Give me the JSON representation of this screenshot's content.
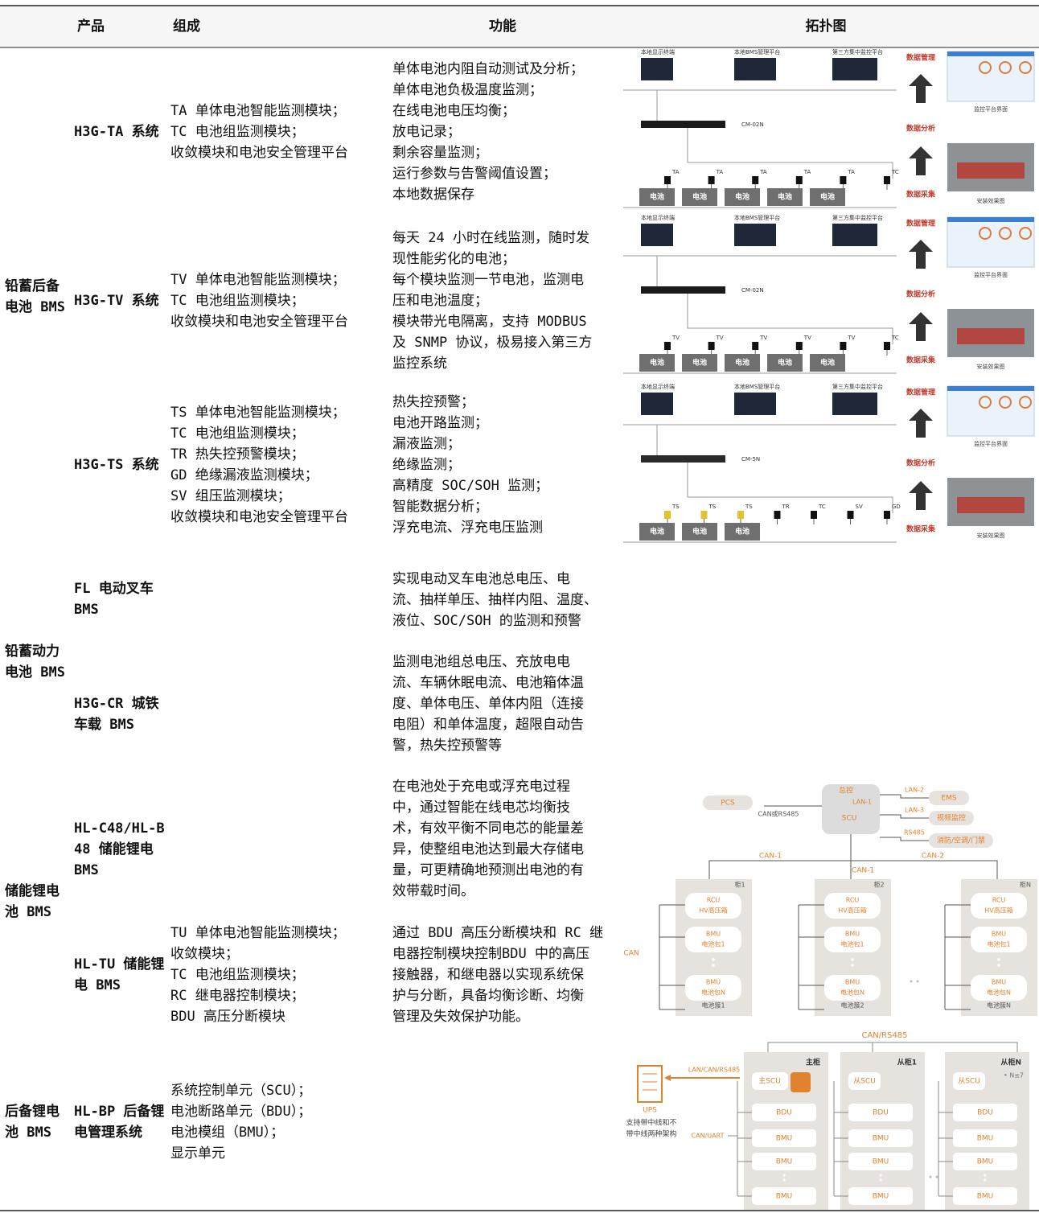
{
  "header": {
    "columns": [
      "产品",
      "组成",
      "功能",
      "拓扑图"
    ]
  },
  "groups": [
    {
      "category": [
        "铅蓄后备",
        "电池 BMS"
      ],
      "items": [
        {
          "product": [
            "H3G-TA 系统"
          ],
          "composition": [
            "TA 单体电池智能监测模块；",
            "TC 电池组监测模块；",
            "收敛模块和电池安全管理平台"
          ],
          "function": [
            "单体电池内阻自动测试及分析；",
            "单体电池负极温度监测；",
            "在线电池电压均衡；",
            "放电记录；",
            "剩余容量监测；",
            "运行参数与告警阈值设置；",
            "本地数据保存"
          ]
        },
        {
          "product": [
            "H3G-TV 系统"
          ],
          "composition": [
            "TV 单体电池智能监测模块；",
            "TC 电池组监测模块；",
            "收敛模块和电池安全管理平台"
          ],
          "function": [
            "每天 24 小时在线监测，随时发",
            "现性能劣化的电池；",
            "每个模块监测一节电池，监测电",
            "压和电池温度；",
            "模块带光电隔离，支持 MODBUS",
            "及 SNMP 协议，极易接入第三方",
            "监控系统"
          ]
        },
        {
          "product": [
            "H3G-TS 系统"
          ],
          "composition": [
            "TS 单体电池智能监测模块；",
            "TC 电池组监测模块；",
            "TR 热失控预警模块；",
            "GD 绝缘漏液监测模块；",
            "SV 组压监测模块；",
            "收敛模块和电池安全管理平台"
          ],
          "function": [
            "热失控预警；",
            "电池开路监测；",
            "漏液监测；",
            "绝缘监测；",
            "高精度 SOC/SOH 监测；",
            "智能数据分析；",
            "浮充电流、浮充电压监测"
          ]
        }
      ]
    },
    {
      "category": [
        "铅蓄动力",
        "电池 BMS"
      ],
      "items": [
        {
          "product": [
            "FL 电动叉车",
            "BMS"
          ],
          "composition": [],
          "function": [
            "实现电动叉车电池总电压、电",
            "流、抽样单压、抽样内阻、温度、",
            "液位、SOC/SOH 的监测和预警"
          ]
        },
        {
          "product": [
            "H3G-CR 城铁",
            "车载 BMS"
          ],
          "composition": [],
          "function": [
            "监测电池组总电压、充放电电",
            "流、车辆休眠电流、电池箱体温",
            "度、单体电压、单体内阻（连接",
            "电阻）和单体温度，超限自动告",
            "警，热失控预警等"
          ]
        }
      ]
    },
    {
      "category": [
        "储能锂电",
        "池 BMS"
      ],
      "items": [
        {
          "product": [
            "HL-C48/HL-B",
            "48 储能锂电",
            "BMS"
          ],
          "composition": [],
          "function": [
            "在电池处于充电或浮充电过程",
            "中，通过智能在线电芯均衡技",
            "术，有效平衡不同电芯的能量差",
            "异，使整组电池达到最大存储电",
            "量，可更精确地预测出电池的有",
            "效带载时间。"
          ]
        },
        {
          "product": [
            "HL-TU 储能锂",
            "电 BMS"
          ],
          "composition": [
            "TU 单体电池智能监测模块；",
            "收敛模块；",
            "TC 电池组监测模块；",
            "RC 继电器控制模块；",
            "BDU 高压分断模块"
          ],
          "function": [
            "通过 BDU 高压分断模块和 RC 继",
            "电器控制模块控制BDU 中的高压",
            "接触器，和继电器以实现系统保",
            "护与分断，具备均衡诊断、均衡",
            "管理及失效保护功能。"
          ]
        }
      ]
    },
    {
      "category": [
        "后备锂电",
        "池 BMS"
      ],
      "items": [
        {
          "product": [
            "HL-BP 后备锂",
            "电管理系统"
          ],
          "composition": [
            "系统控制单元（SCU）；",
            "电池断路单元（BDU）；",
            "电池模组（BMU）；",
            "显示单元"
          ],
          "function": []
        }
      ]
    }
  ],
  "topology": {
    "lead": [
      {
        "labels_top": [
          "本地显示终端",
          "本地BMS管理平台",
          "第三方集中监控平台"
        ],
        "device": "CM-02N",
        "modules": [
          "TA",
          "TA",
          "TA",
          "TA",
          "TA",
          "TC"
        ],
        "battery_labels": [
          "电池",
          "电池",
          "电池",
          "电池",
          "电池"
        ],
        "side": [
          "数据管理",
          "数据分析",
          "数据采集"
        ],
        "captions": [
          "监控平台界面",
          "安装效果图"
        ]
      },
      {
        "labels_top": [
          "本地显示终端",
          "本地BMS管理平台",
          "第三方集中监控平台"
        ],
        "device": "CM-02N",
        "modules": [
          "TV",
          "TV",
          "TV",
          "TV",
          "TV",
          "TC"
        ],
        "battery_labels": [
          "电池",
          "电池",
          "电池",
          "电池",
          "电池"
        ],
        "side": [
          "数据管理",
          "数据分析",
          "数据采集"
        ],
        "captions": [
          "监控平台界面",
          "安装效果图"
        ]
      },
      {
        "labels_top": [
          "本地显示终端",
          "本地BMS管理平台",
          "第三方集中监控平台"
        ],
        "device": "CM-5N",
        "modules": [
          "TS",
          "TS",
          "TS",
          "TR",
          "TC",
          "SV",
          "GD"
        ],
        "battery_labels": [
          "电池",
          "电池",
          "电池"
        ],
        "side": [
          "数据管理",
          "数据分析",
          "数据采集"
        ],
        "captions": [
          "监控平台界面",
          "安装效果图"
        ]
      }
    ],
    "storage": {
      "master": [
        "总控",
        "SCU"
      ],
      "lan1": "LAN-1",
      "pcs": "PCS",
      "pcs_link": "CAN或RS485",
      "links": [
        {
          "label": "LAN-2",
          "target": "EMS"
        },
        {
          "label": "LAN-3",
          "target": "视频监控"
        },
        {
          "label": "RS485",
          "target": "消防/空调/门禁"
        }
      ],
      "buses": [
        "CAN-1",
        "CAN-1",
        "CAN-2"
      ],
      "cabinets": [
        {
          "name": "柜1",
          "cluster": "电池簇1"
        },
        {
          "name": "柜2",
          "cluster": "电池簇2"
        },
        {
          "name": "柜N",
          "cluster": "电池簇N"
        }
      ],
      "rcu": [
        "RCU",
        "HV高压箱"
      ],
      "bmu_first": [
        "BMU",
        "电池包1"
      ],
      "bmu_last": [
        "BMU",
        "电池包N"
      ],
      "can": "CAN"
    },
    "backup": {
      "bus": "CAN/RS485",
      "cabinets": [
        {
          "name": "主柜",
          "scu": "主SCU"
        },
        {
          "name": "从柜1",
          "scu": "从SCU"
        },
        {
          "name": "从柜N",
          "scu": "从SCU",
          "note": "• N≤7"
        }
      ],
      "modules": [
        "BDU",
        "BMU",
        "BMU",
        "BMU"
      ],
      "ups": "UPS",
      "ups_note": [
        "支持带中线和不",
        "带中线两种架构"
      ],
      "link1": "LAN/CAN/RS485",
      "link2": "CAN/UART"
    }
  }
}
